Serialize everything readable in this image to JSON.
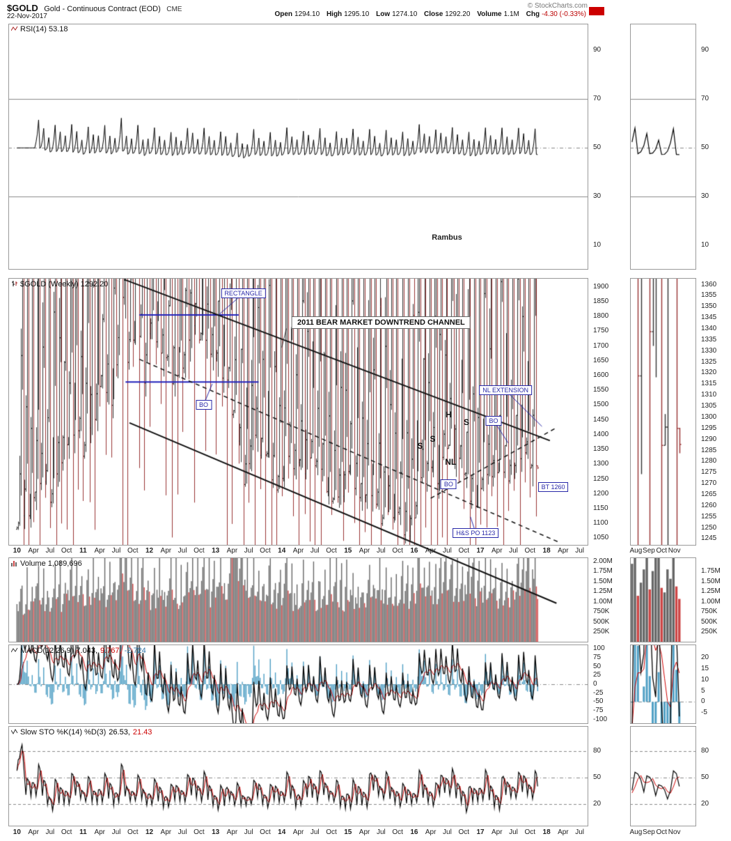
{
  "header": {
    "symbol": "$GOLD",
    "name": "Gold - Continuous Contract (EOD)",
    "exchange": "CME",
    "date": "22-Nov-2017",
    "fields": [
      {
        "label": "Open",
        "value": "1294.10"
      },
      {
        "label": "High",
        "value": "1295.10"
      },
      {
        "label": "Low",
        "value": "1274.10"
      },
      {
        "label": "Close",
        "value": "1292.20"
      },
      {
        "label": "Volume",
        "value": "1.1M"
      },
      {
        "label": "Chg",
        "value": "-4.30 (-0.33%)",
        "color": "#bb0000"
      }
    ],
    "copyright": "© StockCharts.com"
  },
  "colors": {
    "up": "#333333",
    "down": "#993333",
    "vol_up": "#666666",
    "vol_down": "#cc4444",
    "macd_line": "#000000",
    "macd_signal": "#cc0000",
    "macd_hist": "#4f9fc4",
    "sto_k": "#000000",
    "sto_d": "#cc0000",
    "rsi_line": "#000000",
    "rsi_over_fill": "#5b8a5b",
    "rsi_under_fill": "#a35757",
    "annotation_blue": "#2727a8",
    "grid": "#888888",
    "alert_red": "#cc0000"
  },
  "chart_data": {
    "type": "multi-panel-weekly-financial",
    "x_axis": {
      "start": 2009.87,
      "end": 2018.63,
      "tick_start": 2010.0,
      "tick_step": 0.25,
      "tick_labels": [
        "10",
        "Apr",
        "Jul",
        "Oct",
        "11",
        "Apr",
        "Jul",
        "Oct",
        "12",
        "Apr",
        "Jul",
        "Oct",
        "13",
        "Apr",
        "Jul",
        "Oct",
        "14",
        "Apr",
        "Jul",
        "Oct",
        "15",
        "Apr",
        "Jul",
        "Oct",
        "16",
        "Apr",
        "Jul",
        "Oct",
        "17",
        "Apr",
        "Jul",
        "Oct",
        "18",
        "Apr",
        "Jul"
      ]
    },
    "mini_x_axis": {
      "start": 2017.545,
      "end": 2017.975,
      "ticks": [
        {
          "t": 2017.583,
          "label": "Aug"
        },
        {
          "t": 2017.667,
          "label": "Sep"
        },
        {
          "t": 2017.75,
          "label": "Oct"
        },
        {
          "t": 2017.833,
          "label": "Nov"
        }
      ]
    },
    "weeks_end": 2017.88,
    "rsi": {
      "label": "RSI(14) 53.18",
      "period": 14,
      "current": 53.18,
      "y_range": [
        0,
        101
      ],
      "y_ticks": [
        90,
        70,
        50,
        30,
        10
      ],
      "levels": {
        "overbought": 70,
        "mid": 50,
        "oversold": 30
      },
      "watermark": {
        "text": "Rambus",
        "t": 2016.5,
        "v": 13
      }
    },
    "price": {
      "label": "$GOLD (Weekly) 1292.20",
      "current": 1292.2,
      "monthly_start": 2010.0,
      "monthly_closes": [
        1080,
        1118,
        1115,
        1180,
        1215,
        1244,
        1170,
        1248,
        1307,
        1360,
        1385,
        1420,
        1335,
        1410,
        1440,
        1560,
        1535,
        1500,
        1630,
        1860,
        1640,
        1720,
        1750,
        1565,
        1740,
        1710,
        1670,
        1660,
        1560,
        1600,
        1620,
        1690,
        1775,
        1720,
        1715,
        1675,
        1660,
        1580,
        1595,
        1470,
        1390,
        1235,
        1310,
        1395,
        1330,
        1325,
        1250,
        1205,
        1245,
        1325,
        1285,
        1300,
        1250,
        1315,
        1295,
        1285,
        1210,
        1170,
        1175,
        1185,
        1280,
        1215,
        1185,
        1180,
        1190,
        1175,
        1095,
        1135,
        1115,
        1140,
        1065,
        1060,
        1115,
        1235,
        1235,
        1290,
        1215,
        1320,
        1350,
        1310,
        1315,
        1270,
        1175,
        1150,
        1210,
        1255,
        1250,
        1270,
        1270,
        1240,
        1270,
        1300,
        1335,
        1280,
        1290
      ],
      "y_range": [
        1025,
        1930
      ],
      "y_ticks": [
        1900,
        1850,
        1800,
        1750,
        1700,
        1650,
        1600,
        1550,
        1500,
        1450,
        1400,
        1350,
        1300,
        1250,
        1200,
        1150,
        1100,
        1050
      ],
      "mini_y_range": [
        1242,
        1363
      ],
      "mini_y_ticks": [
        1360,
        1355,
        1350,
        1345,
        1340,
        1335,
        1330,
        1325,
        1320,
        1315,
        1310,
        1305,
        1300,
        1295,
        1290,
        1285,
        1280,
        1275,
        1270,
        1265,
        1260,
        1255,
        1250,
        1245
      ]
    },
    "volume": {
      "label": "Volume 1,089,696",
      "current": "1,089,696",
      "monthly_millions": [
        0.85,
        0.8,
        0.82,
        0.95,
        1.0,
        0.9,
        0.78,
        0.88,
        0.92,
        1.0,
        0.95,
        0.85,
        0.95,
        0.9,
        0.92,
        1.05,
        1.0,
        0.95,
        1.05,
        1.35,
        1.45,
        1.15,
        1.0,
        1.1,
        1.0,
        0.95,
        1.0,
        0.9,
        1.05,
        0.95,
        0.9,
        0.95,
        1.05,
        1.0,
        1.1,
        1.05,
        1.0,
        1.2,
        1.0,
        1.95,
        1.3,
        1.5,
        1.1,
        1.0,
        0.95,
        0.9,
        1.0,
        0.95,
        1.0,
        1.05,
        0.95,
        0.85,
        0.9,
        0.95,
        0.9,
        0.85,
        0.95,
        1.0,
        0.95,
        0.9,
        0.95,
        0.9,
        0.85,
        0.8,
        0.85,
        0.9,
        1.1,
        0.95,
        0.9,
        0.85,
        1.0,
        0.9,
        1.0,
        1.2,
        1.1,
        1.0,
        0.95,
        1.25,
        1.3,
        1.05,
        1.0,
        1.05,
        1.35,
        1.1,
        1.05,
        1.0,
        1.1,
        0.95,
        1.0,
        1.05,
        1.0,
        1.2,
        1.55,
        1.6,
        1.1
      ],
      "y_range": [
        0,
        2.1
      ],
      "y_ticks": [
        {
          "v": 2.0,
          "label": "2.00M"
        },
        {
          "v": 1.75,
          "label": "1.75M"
        },
        {
          "v": 1.5,
          "label": "1.50M"
        },
        {
          "v": 1.25,
          "label": "1.25M"
        },
        {
          "v": 1.0,
          "label": "1.00M"
        },
        {
          "v": 0.75,
          "label": "750K"
        },
        {
          "v": 0.5,
          "label": "500K"
        },
        {
          "v": 0.25,
          "label": "250K"
        }
      ],
      "mini_y_ticks": [
        {
          "v": 1.75,
          "label": "1.75M"
        },
        {
          "v": 1.5,
          "label": "1.50M"
        },
        {
          "v": 1.25,
          "label": "1.25M"
        },
        {
          "v": 1.0,
          "label": "1.00M"
        },
        {
          "v": 0.75,
          "label": "750K"
        },
        {
          "v": 0.5,
          "label": "500K"
        },
        {
          "v": 0.25,
          "label": "250K"
        }
      ]
    },
    "macd": {
      "label_base": "MACD(12,26,9)",
      "values": [
        {
          "text": "7.043,",
          "color": "#000000"
        },
        {
          "text": "9.767,",
          "color": "#cc0000"
        },
        {
          "text": "-2.724",
          "color": "#3377aa"
        }
      ],
      "fast": 12,
      "slow": 26,
      "signal": 9,
      "y_range": [
        -112,
        112
      ],
      "y_ticks": [
        100,
        75,
        50,
        25,
        0,
        -25,
        -50,
        -75,
        -100
      ],
      "mini_y_range": [
        -10,
        26
      ],
      "mini_y_ticks": [
        20,
        15,
        10,
        5,
        0,
        -5
      ]
    },
    "sto": {
      "label_base": "Slow STO %K(14) %D(3)",
      "values": [
        {
          "text": "26.53,",
          "color": "#000000"
        },
        {
          "text": "21.43",
          "color": "#cc0000"
        }
      ],
      "k_period": 14,
      "d_period": 3,
      "y_range": [
        -5,
        108
      ],
      "y_ticks": [
        80,
        50,
        20
      ]
    },
    "annotations": {
      "price_lines": [
        {
          "name": "rectangle-top-line",
          "x1": 2011.85,
          "y1": 1805,
          "x2": 2013.35,
          "y2": 1805,
          "color": "#2222bb",
          "width": 2,
          "dash": []
        },
        {
          "name": "rectangle-bottom-line",
          "x1": 2011.64,
          "y1": 1578,
          "x2": 2013.65,
          "y2": 1578,
          "color": "#2222bb",
          "width": 2,
          "dash": []
        },
        {
          "name": "channel-upper-line",
          "x1": 2011.62,
          "y1": 1925,
          "x2": 2018.05,
          "y2": 1380,
          "color": "#111111",
          "width": 2,
          "dash": []
        },
        {
          "name": "channel-mid-line",
          "x1": 2011.85,
          "y1": 1655,
          "x2": 2018.2,
          "y2": 1035,
          "color": "#111111",
          "width": 1.5,
          "dash": [
            6,
            5
          ]
        },
        {
          "name": "channel-lower-line",
          "x1": 2011.7,
          "y1": 1440,
          "x2": 2018.15,
          "y2": 830,
          "color": "#111111",
          "width": 2,
          "dash": []
        },
        {
          "name": "neckline-extension",
          "x1": 2016.25,
          "y1": 1185,
          "x2": 2018.12,
          "y2": 1420,
          "color": "#111111",
          "width": 1.5,
          "dash": [
            6,
            5
          ]
        }
      ],
      "price_boxes": [
        {
          "text": "RECTANGLE",
          "t": 2013.42,
          "v": 1878,
          "leader": {
            "t": 2013.05,
            "v": 1806
          }
        },
        {
          "text": "BO",
          "t": 2012.82,
          "v": 1502,
          "leader": {
            "t": 2012.95,
            "v": 1572
          }
        },
        {
          "text": "NL EXTENSION",
          "t": 2017.38,
          "v": 1550,
          "leader": {
            "t": 2017.93,
            "v": 1428
          }
        },
        {
          "text": "BO",
          "t": 2017.2,
          "v": 1448,
          "leader": {
            "t": 2017.42,
            "v": 1372
          }
        },
        {
          "text": "BO",
          "t": 2016.52,
          "v": 1232,
          "leader": null
        },
        {
          "text": "BT 1260",
          "t": 2018.1,
          "v": 1222,
          "leader": null
        },
        {
          "text": "H&S PO 1123",
          "t": 2016.93,
          "v": 1068,
          "leader": {
            "t": 2016.85,
            "v": 1122
          }
        }
      ],
      "price_letters": [
        {
          "text": "S",
          "t": 2016.09,
          "v": 1362
        },
        {
          "text": "S",
          "t": 2016.28,
          "v": 1385
        },
        {
          "text": "H",
          "t": 2016.52,
          "v": 1468
        },
        {
          "text": "S",
          "t": 2016.79,
          "v": 1442
        },
        {
          "text": "NL",
          "t": 2016.55,
          "v": 1308
        }
      ],
      "channel_label": {
        "text": "2011 BEAR MARKET DOWNTREND  CHANNEL",
        "t": 2015.5,
        "v": 1778,
        "leader": {
          "t": 2014.0,
          "v": 1695
        }
      }
    }
  }
}
